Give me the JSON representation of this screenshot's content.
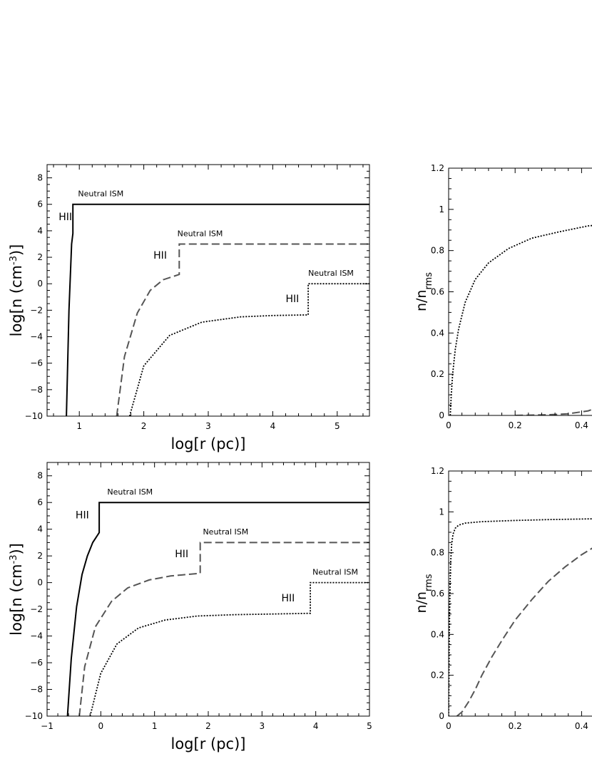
{
  "chart_data": [
    {
      "type": "line",
      "xlabel": "log[r (pc)]",
      "ylabel_parts": [
        "log[n (cm",
        "-3",
        ")]"
      ],
      "xlim": [
        0.5,
        5.5
      ],
      "ylim": [
        -10,
        9
      ],
      "x_ticks": [
        "1",
        "2",
        "3",
        "4",
        "5"
      ],
      "y_ticks": [
        "−10",
        "−8",
        "−6",
        "−4",
        "−2",
        "0",
        "2",
        "4",
        "6",
        "8"
      ],
      "series": [
        {
          "style": "solid",
          "x": [
            0.8,
            0.84,
            0.88,
            0.9,
            0.9,
            5.5
          ],
          "y": [
            -10,
            -2,
            3,
            3.8,
            6,
            6
          ]
        },
        {
          "style": "dashed",
          "x": [
            1.58,
            1.7,
            1.9,
            2.1,
            2.3,
            2.55,
            2.55,
            5.5
          ],
          "y": [
            -10,
            -5.5,
            -2.2,
            -0.5,
            0.3,
            0.7,
            3,
            3
          ]
        },
        {
          "style": "dotted",
          "x": [
            1.78,
            2.0,
            2.4,
            2.9,
            3.5,
            4.0,
            4.55,
            4.55,
            5.5
          ],
          "y": [
            -10,
            -6.2,
            -3.9,
            -2.9,
            -2.5,
            -2.4,
            -2.35,
            0,
            0
          ]
        }
      ],
      "annotations": [
        {
          "text": "Neutral ISM",
          "x": 0.98,
          "y": 6.6
        },
        {
          "text": "HII",
          "x": 0.68,
          "y": 4.8
        },
        {
          "text": "Neutral ISM",
          "x": 2.52,
          "y": 3.6
        },
        {
          "text": "HII",
          "x": 2.15,
          "y": 1.9
        },
        {
          "text": "Neutral ISM",
          "x": 4.55,
          "y": 0.6
        },
        {
          "text": "HII",
          "x": 4.2,
          "y": -1.4
        }
      ]
    },
    {
      "type": "line",
      "xlabel": "",
      "ylabel_parts": [
        "n/n",
        "rms",
        ""
      ],
      "xlim": [
        0,
        0.5
      ],
      "ylim": [
        0,
        1.2
      ],
      "x_ticks": [
        "0",
        "0.2",
        "0.4"
      ],
      "y_ticks": [
        "0",
        "0.2",
        "0.4",
        "0.6",
        "0.8",
        "1",
        "1.2"
      ],
      "series": [
        {
          "style": "dotted",
          "x": [
            0.005,
            0.008,
            0.012,
            0.02,
            0.03,
            0.05,
            0.08,
            0.12,
            0.18,
            0.25,
            0.33,
            0.42,
            0.5
          ],
          "y": [
            0,
            0.1,
            0.2,
            0.32,
            0.42,
            0.55,
            0.66,
            0.74,
            0.81,
            0.86,
            0.89,
            0.92,
            0.93
          ]
        },
        {
          "style": "dashed",
          "x": [
            0.2,
            0.3,
            0.36,
            0.42,
            0.46,
            0.5
          ],
          "y": [
            0,
            0.003,
            0.008,
            0.022,
            0.045,
            0.07
          ]
        }
      ]
    },
    {
      "type": "line",
      "xlabel": "log[r (pc)]",
      "ylabel_parts": [
        "log[n (cm",
        "-3",
        ")]"
      ],
      "xlim": [
        -1,
        5
      ],
      "ylim": [
        -10,
        9
      ],
      "x_ticks": [
        "−1",
        "0",
        "1",
        "2",
        "3",
        "4",
        "5"
      ],
      "y_ticks": [
        "−10",
        "−8",
        "−6",
        "−4",
        "−2",
        "0",
        "2",
        "4",
        "6",
        "8"
      ],
      "series": [
        {
          "style": "solid",
          "x": [
            -0.62,
            -0.55,
            -0.45,
            -0.35,
            -0.25,
            -0.15,
            -0.07,
            -0.03,
            -0.03,
            5
          ],
          "y": [
            -10,
            -5.7,
            -1.8,
            0.6,
            2.0,
            3.0,
            3.5,
            3.75,
            6,
            6
          ]
        },
        {
          "style": "dashed",
          "x": [
            -0.4,
            -0.3,
            -0.1,
            0.2,
            0.5,
            0.9,
            1.3,
            1.85,
            1.85,
            5
          ],
          "y": [
            -10,
            -6.3,
            -3.3,
            -1.4,
            -0.4,
            0.2,
            0.5,
            0.7,
            3,
            3
          ]
        },
        {
          "style": "dotted",
          "x": [
            -0.2,
            0.0,
            0.3,
            0.7,
            1.2,
            1.8,
            2.5,
            3.2,
            3.9,
            3.9,
            5
          ],
          "y": [
            -10,
            -6.8,
            -4.6,
            -3.4,
            -2.8,
            -2.5,
            -2.4,
            -2.35,
            -2.3,
            0,
            0
          ]
        }
      ],
      "annotations": [
        {
          "text": "Neutral ISM",
          "x": 0.12,
          "y": 6.6
        },
        {
          "text": "HII",
          "x": -0.47,
          "y": 4.8
        },
        {
          "text": "Neutral ISM",
          "x": 1.9,
          "y": 3.6
        },
        {
          "text": "HII",
          "x": 1.38,
          "y": 1.9
        },
        {
          "text": "Neutral ISM",
          "x": 3.94,
          "y": 0.6
        },
        {
          "text": "HII",
          "x": 3.36,
          "y": -1.4
        }
      ]
    },
    {
      "type": "line",
      "xlabel": "",
      "ylabel_parts": [
        "n/n",
        "rms",
        ""
      ],
      "xlim": [
        0,
        0.5
      ],
      "ylim": [
        0,
        1.2
      ],
      "x_ticks": [
        "0",
        "0.2",
        "0.4"
      ],
      "y_ticks": [
        "0",
        "0.2",
        "0.4",
        "0.6",
        "0.8",
        "1",
        "1.2"
      ],
      "series": [
        {
          "style": "dotted",
          "x": [
            0,
            0.002,
            0.004,
            0.006,
            0.009,
            0.013,
            0.02,
            0.03,
            0.05,
            0.1,
            0.2,
            0.3,
            0.4,
            0.5
          ],
          "y": [
            0,
            0.4,
            0.62,
            0.75,
            0.84,
            0.89,
            0.92,
            0.935,
            0.945,
            0.952,
            0.958,
            0.962,
            0.965,
            0.968
          ]
        },
        {
          "style": "dashed",
          "x": [
            0.025,
            0.04,
            0.06,
            0.08,
            0.1,
            0.13,
            0.16,
            0.2,
            0.25,
            0.3,
            0.35,
            0.4,
            0.45,
            0.5
          ],
          "y": [
            0,
            0.02,
            0.07,
            0.13,
            0.2,
            0.29,
            0.37,
            0.47,
            0.57,
            0.66,
            0.73,
            0.79,
            0.84,
            0.87
          ]
        }
      ]
    }
  ]
}
